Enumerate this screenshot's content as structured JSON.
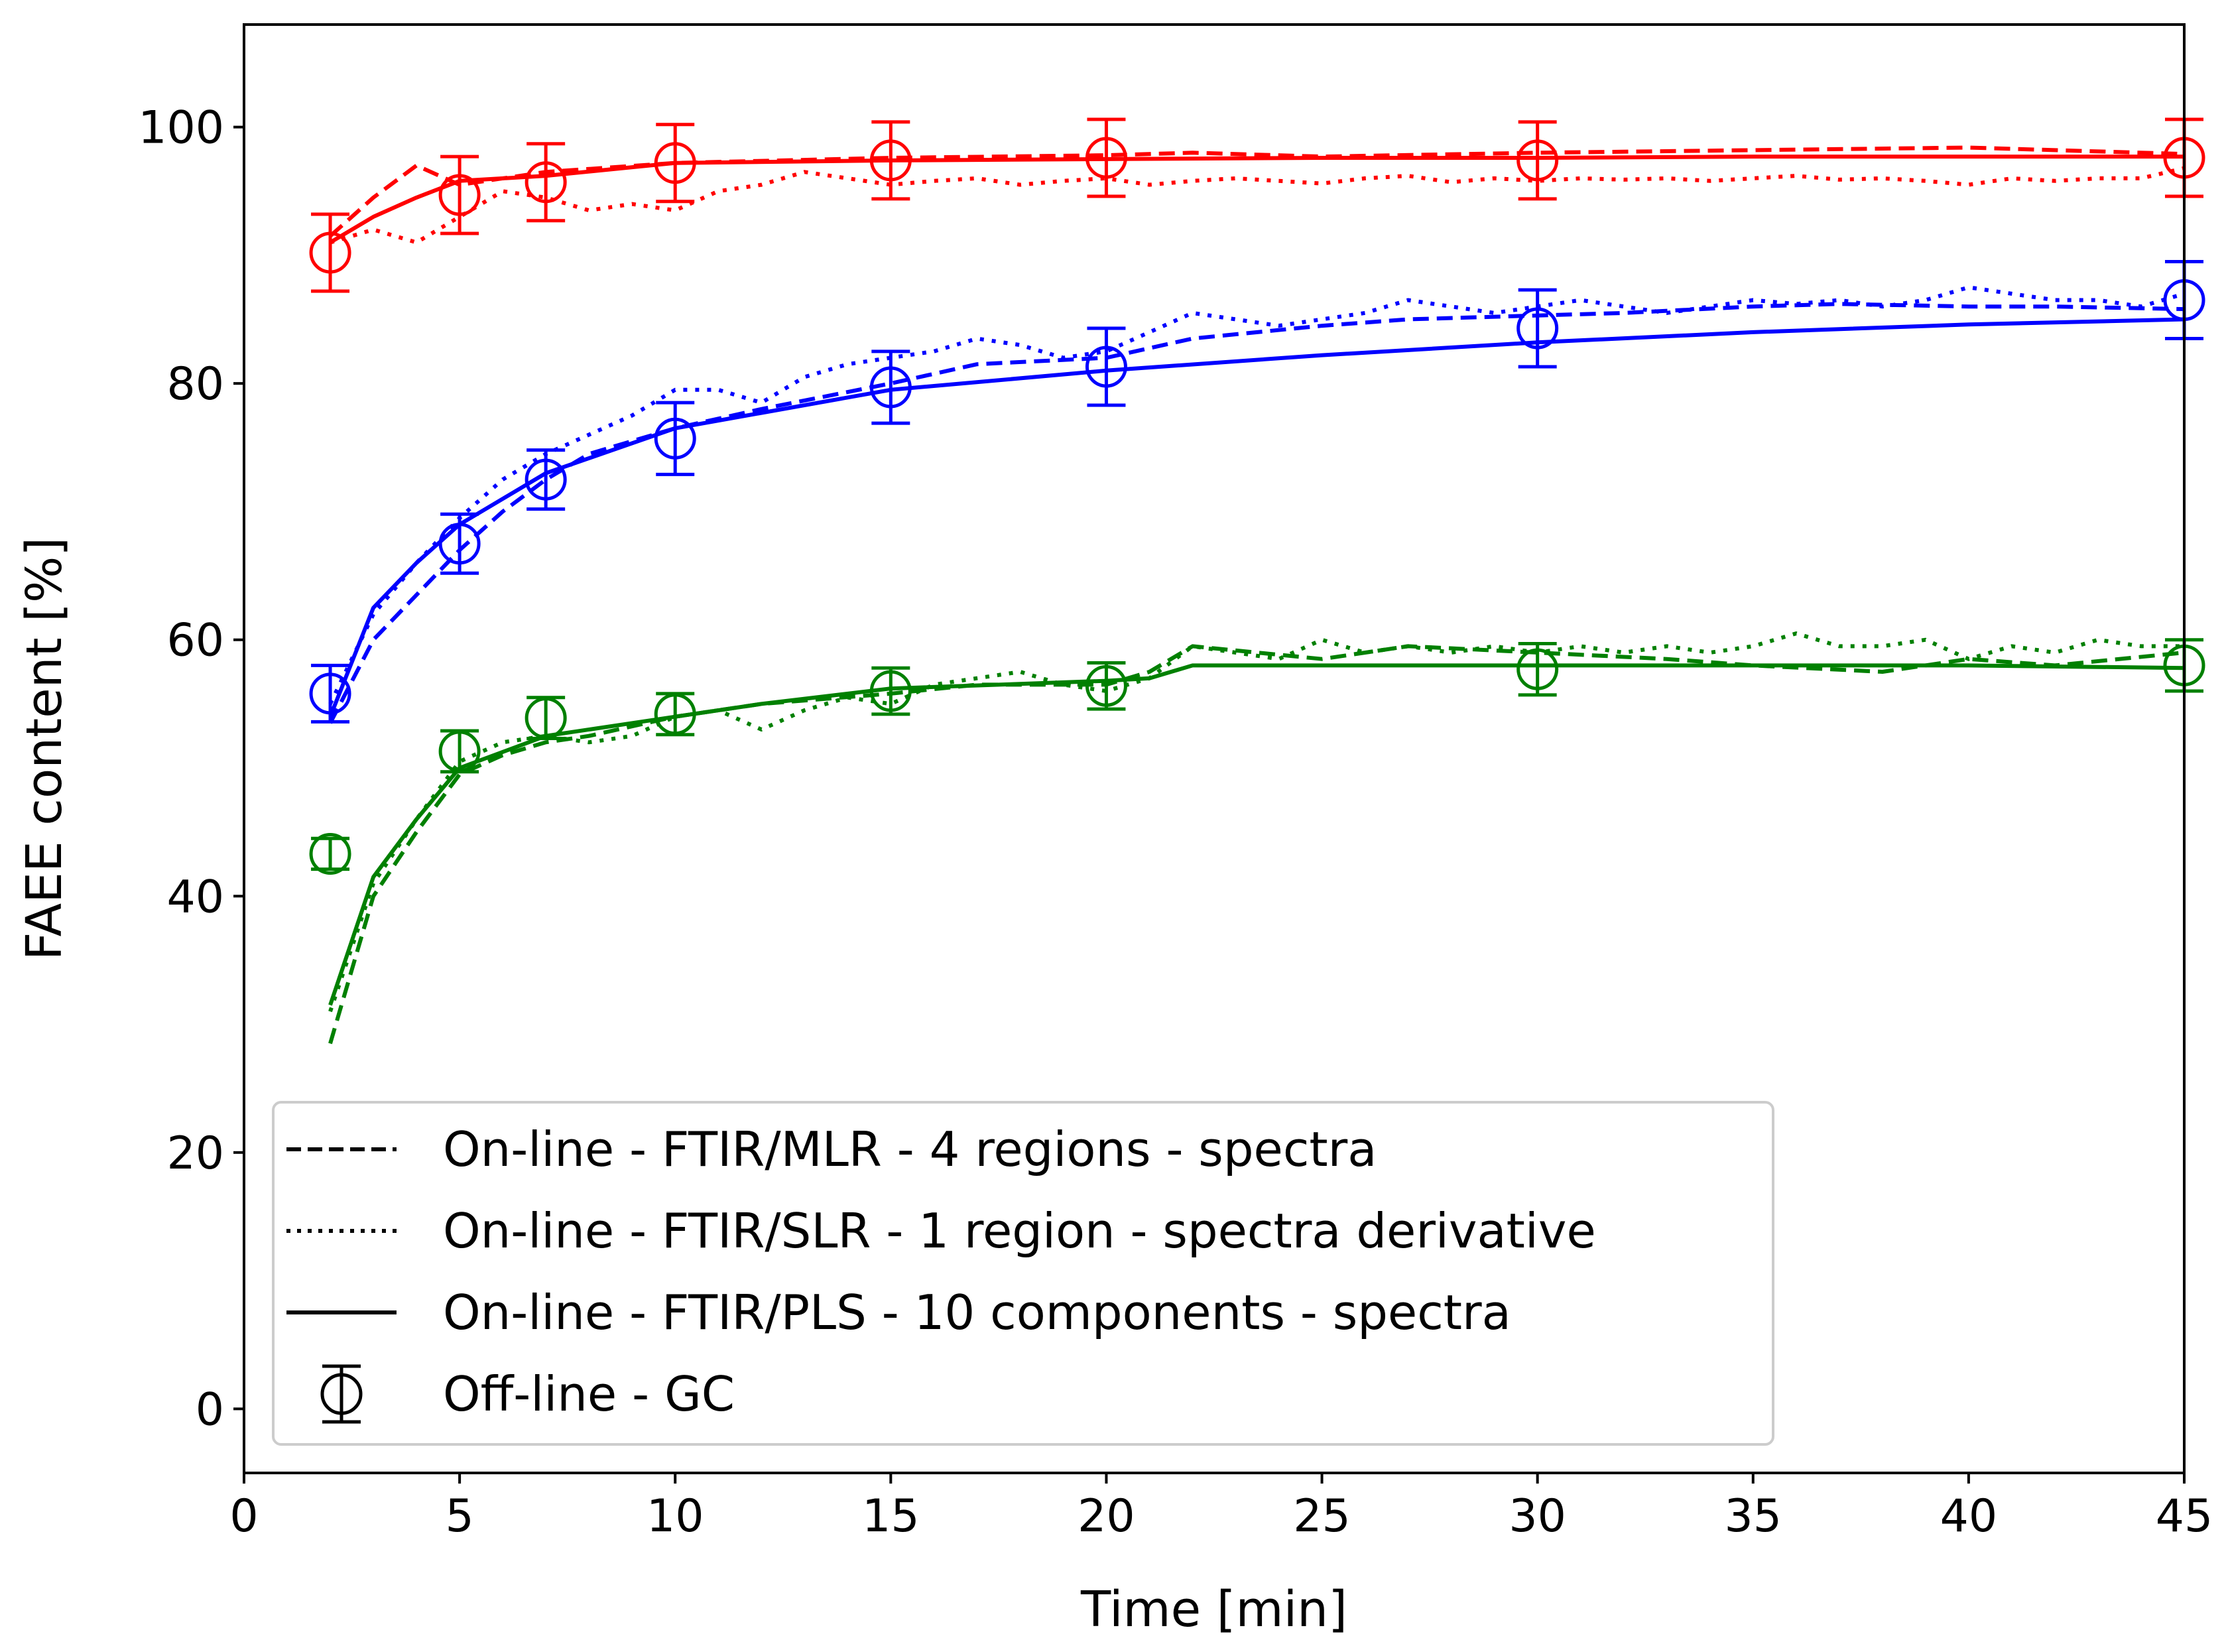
{
  "chart_data": {
    "type": "line",
    "xlabel": "Time [min]",
    "ylabel": "FAEE content [%]",
    "xlim": [
      0,
      45
    ],
    "ylim": [
      -5,
      108
    ],
    "xticks": [
      0,
      5,
      10,
      15,
      20,
      25,
      30,
      35,
      40,
      45
    ],
    "yticks": [
      0,
      20,
      40,
      60,
      80,
      100
    ],
    "grid": false,
    "legend_position": "lower-left",
    "legend": [
      {
        "style": "dashed",
        "label": "On-line - FTIR/MLR - 4 regions - spectra"
      },
      {
        "style": "dotted",
        "label": "On-line - FTIR/SLR - 1 region - spectra derivative"
      },
      {
        "style": "solid",
        "label": "On-line - FTIR/PLS - 10 components - spectra"
      },
      {
        "style": "errorbar-marker",
        "label": "Off-line - GC"
      }
    ],
    "groups": [
      {
        "color": "#ff0000",
        "gc": {
          "x": [
            2,
            5,
            7,
            10,
            15,
            20,
            30,
            45
          ],
          "y": [
            90.2,
            94.7,
            95.7,
            97.2,
            97.4,
            97.6,
            97.4,
            97.6
          ],
          "err": [
            3.0,
            3.0,
            3.0,
            3.0,
            3.0,
            3.0,
            3.0,
            3.0
          ]
        },
        "mlr": {
          "x": [
            2,
            3,
            4,
            5,
            7,
            10,
            15,
            20,
            22,
            25,
            30,
            35,
            40,
            45
          ],
          "y": [
            91.5,
            94.5,
            97.0,
            95.5,
            96.5,
            97.2,
            97.6,
            97.8,
            98.0,
            97.7,
            98.0,
            98.2,
            98.4,
            97.9
          ]
        },
        "slr": {
          "x": [
            2,
            3,
            4,
            5,
            6,
            7,
            8,
            9,
            10,
            11,
            12,
            13,
            14,
            15,
            16,
            17,
            18,
            19,
            20,
            21,
            22,
            23,
            24,
            25,
            26,
            27,
            28,
            29,
            30,
            31,
            32,
            33,
            34,
            35,
            36,
            37,
            38,
            39,
            40,
            41,
            42,
            43,
            44,
            45
          ],
          "y": [
            91.0,
            92.0,
            91.0,
            93.0,
            95.0,
            94.5,
            93.5,
            94.0,
            93.5,
            95.0,
            95.5,
            96.5,
            96.0,
            95.5,
            95.8,
            96.0,
            95.5,
            95.8,
            96.0,
            95.5,
            95.8,
            96.0,
            95.8,
            95.6,
            96.0,
            96.2,
            95.7,
            96.0,
            95.8,
            96.0,
            95.9,
            96.0,
            95.8,
            96.0,
            96.2,
            95.9,
            96.0,
            95.8,
            95.5,
            96.0,
            95.8,
            96.0,
            96.0,
            96.8
          ]
        },
        "pls": {
          "x": [
            2,
            3,
            4,
            5,
            7,
            10,
            15,
            20,
            25,
            30,
            35,
            40,
            45
          ],
          "y": [
            91.0,
            93.0,
            94.5,
            95.8,
            96.2,
            97.2,
            97.4,
            97.5,
            97.6,
            97.6,
            97.7,
            97.7,
            97.7
          ]
        }
      },
      {
        "color": "#0000ff",
        "gc": {
          "x": [
            2,
            5,
            7,
            10,
            15,
            20,
            30,
            45
          ],
          "y": [
            55.8,
            67.5,
            72.5,
            75.7,
            79.7,
            81.3,
            84.3,
            86.5
          ],
          "err": [
            2.2,
            2.3,
            2.3,
            2.8,
            2.8,
            3.0,
            3.0,
            3.0
          ]
        },
        "mlr": {
          "x": [
            2,
            3,
            4,
            5,
            6,
            7,
            8,
            9,
            10,
            12,
            15,
            17,
            20,
            22,
            25,
            27,
            30,
            32,
            35,
            37,
            40,
            42,
            45
          ],
          "y": [
            53.5,
            60.0,
            63.5,
            67.0,
            70.0,
            72.5,
            74.5,
            75.5,
            76.5,
            78.0,
            80.0,
            81.5,
            82.0,
            83.5,
            84.5,
            85.0,
            85.3,
            85.5,
            86.0,
            86.2,
            86.0,
            86.0,
            85.8
          ]
        },
        "slr": {
          "x": [
            2,
            3,
            4,
            5,
            6,
            7,
            8,
            9,
            10,
            11,
            12,
            13,
            14,
            15,
            16,
            17,
            18,
            19,
            20,
            21,
            22,
            23,
            24,
            25,
            26,
            27,
            28,
            29,
            30,
            31,
            32,
            33,
            34,
            35,
            36,
            37,
            38,
            39,
            40,
            41,
            42,
            43,
            44,
            45
          ],
          "y": [
            55.0,
            62.0,
            66.0,
            69.5,
            72.5,
            74.5,
            76.0,
            77.5,
            79.5,
            79.5,
            78.5,
            80.5,
            81.5,
            82.0,
            82.5,
            83.5,
            83.0,
            82.0,
            82.5,
            84.0,
            85.5,
            85.0,
            84.5,
            85.0,
            85.5,
            86.5,
            86.0,
            85.5,
            86.0,
            86.5,
            86.0,
            85.5,
            86.0,
            86.5,
            86.2,
            86.5,
            86.0,
            86.5,
            87.5,
            87.0,
            86.5,
            86.5,
            86.0,
            87.0
          ]
        },
        "pls": {
          "x": [
            2,
            3,
            4,
            5,
            7,
            10,
            15,
            20,
            25,
            30,
            35,
            40,
            45
          ],
          "y": [
            54.0,
            62.5,
            66.0,
            69.0,
            73.0,
            76.5,
            79.5,
            81.0,
            82.2,
            83.2,
            84.0,
            84.6,
            85.0
          ]
        }
      },
      {
        "color": "#008000",
        "gc": {
          "x": [
            2,
            5,
            7,
            10,
            15,
            20,
            30,
            45
          ],
          "y": [
            43.3,
            51.3,
            53.9,
            54.2,
            56.0,
            56.4,
            57.7,
            58.0
          ],
          "err": [
            1.2,
            1.6,
            1.6,
            1.6,
            1.8,
            1.8,
            2.0,
            2.0
          ]
        },
        "mlr": {
          "x": [
            2,
            3,
            4,
            5,
            6,
            7,
            8,
            10,
            12,
            15,
            17,
            20,
            21,
            22,
            25,
            27,
            30,
            33,
            35,
            38,
            40,
            42,
            45
          ],
          "y": [
            28.5,
            40.0,
            45.0,
            49.5,
            51.0,
            52.0,
            52.5,
            54.0,
            55.0,
            55.8,
            56.5,
            56.5,
            57.5,
            59.5,
            58.5,
            59.5,
            59.0,
            58.5,
            58.0,
            57.5,
            58.5,
            58.0,
            59.0
          ]
        },
        "slr": {
          "x": [
            2,
            3,
            4,
            5,
            6,
            7,
            8,
            9,
            10,
            11,
            12,
            13,
            14,
            15,
            16,
            17,
            18,
            19,
            20,
            21,
            22,
            23,
            24,
            25,
            26,
            27,
            28,
            29,
            30,
            31,
            32,
            33,
            34,
            35,
            36,
            37,
            38,
            39,
            40,
            41,
            42,
            43,
            44,
            45
          ],
          "y": [
            31.0,
            41.0,
            46.0,
            50.5,
            52.0,
            52.5,
            52.0,
            52.5,
            54.0,
            54.5,
            53.0,
            54.5,
            55.5,
            55.0,
            56.5,
            57.0,
            57.5,
            56.5,
            56.0,
            57.0,
            59.5,
            59.0,
            58.5,
            60.0,
            59.0,
            59.5,
            59.0,
            59.5,
            59.0,
            59.5,
            59.0,
            59.5,
            59.0,
            59.5,
            60.5,
            59.5,
            59.5,
            60.0,
            58.5,
            59.5,
            59.0,
            60.0,
            59.5,
            59.5
          ]
        },
        "pls": {
          "x": [
            2,
            3,
            4,
            5,
            7,
            10,
            12,
            15,
            20,
            21,
            22,
            25,
            30,
            35,
            40,
            45
          ],
          "y": [
            31.5,
            41.5,
            46.0,
            50.0,
            52.5,
            54.0,
            55.0,
            56.2,
            56.8,
            57.0,
            58.0,
            58.0,
            58.0,
            58.0,
            58.0,
            57.8
          ]
        }
      }
    ]
  }
}
